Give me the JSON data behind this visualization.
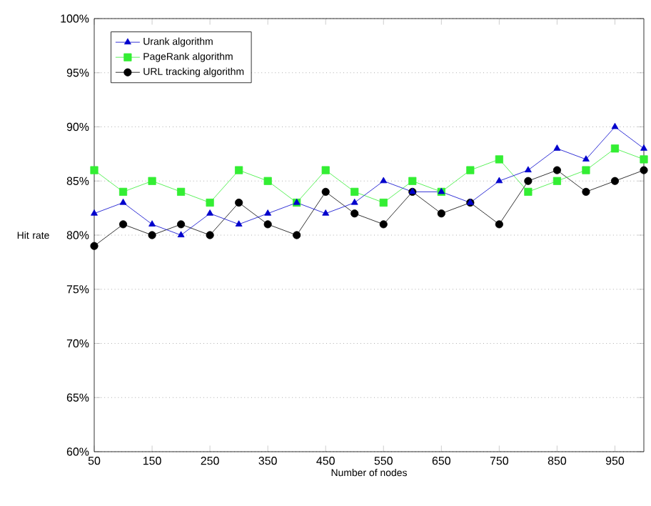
{
  "chart_data": {
    "type": "line",
    "xlabel": "Number of nodes",
    "ylabel": "Hit rate",
    "x": [
      50,
      100,
      150,
      200,
      250,
      300,
      350,
      400,
      450,
      500,
      550,
      600,
      650,
      700,
      750,
      800,
      850,
      900,
      950,
      1000
    ],
    "xlim": [
      50,
      1000
    ],
    "xticks": [
      50,
      150,
      250,
      350,
      450,
      550,
      650,
      750,
      850,
      950
    ],
    "ylim": [
      60,
      100
    ],
    "yticks": [
      {
        "value": 60,
        "label": "60%"
      },
      {
        "value": 65,
        "label": "65%"
      },
      {
        "value": 70,
        "label": "70%"
      },
      {
        "value": 75,
        "label": "75%"
      },
      {
        "value": 80,
        "label": "80%"
      },
      {
        "value": 85,
        "label": "85%"
      },
      {
        "value": 90,
        "label": "90%"
      },
      {
        "value": 95,
        "label": "95%"
      },
      {
        "value": 100,
        "label": "100%"
      }
    ],
    "grid": "y",
    "legend": "top left",
    "series": [
      {
        "name": "Urank algorithm",
        "color": "#0000cc",
        "marker": "triangle",
        "values": [
          82,
          83,
          81,
          80,
          82,
          81,
          82,
          83,
          82,
          83,
          85,
          84,
          84,
          83,
          85,
          86,
          88,
          87,
          90,
          88
        ]
      },
      {
        "name": "PageRank algorithm",
        "color": "#33ee33",
        "marker": "square",
        "values": [
          86,
          84,
          85,
          84,
          83,
          86,
          85,
          83,
          86,
          84,
          83,
          85,
          84,
          86,
          87,
          84,
          85,
          86,
          88,
          87
        ]
      },
      {
        "name": "URL tracking algorithm",
        "color": "#000000",
        "marker": "circle",
        "values": [
          79,
          81,
          80,
          81,
          80,
          83,
          81,
          80,
          84,
          82,
          81,
          84,
          82,
          83,
          81,
          85,
          86,
          84,
          85,
          86
        ]
      }
    ]
  }
}
